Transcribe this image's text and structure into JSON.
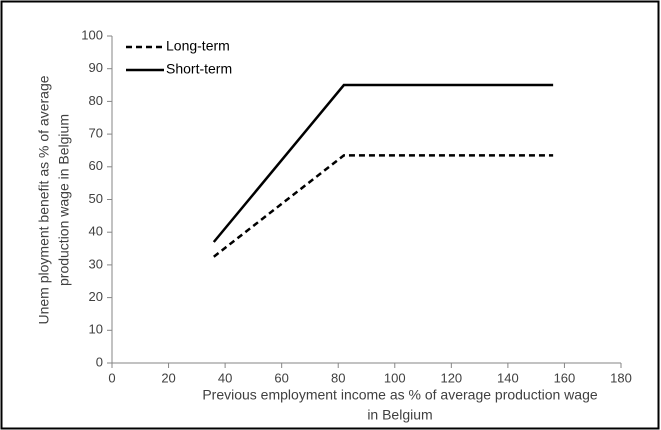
{
  "chart_data": {
    "type": "line",
    "xlabel": [
      "Previous employment income as % of average production wage",
      "in Belgium"
    ],
    "ylabel": [
      "Unem ployment benefit  as % of average",
      "production wage in Belgium"
    ],
    "series": [
      {
        "name": "Long-term",
        "color": "#000000",
        "line_style": "dashed",
        "x": [
          36,
          82,
          156
        ],
        "values": [
          32.5,
          63.5,
          63.5
        ]
      },
      {
        "name": "Short-term",
        "color": "#000000",
        "line_style": "solid",
        "x": [
          36,
          82,
          156
        ],
        "values": [
          37,
          85,
          85
        ]
      }
    ],
    "xlim": [
      0,
      180
    ],
    "xticks": [
      0,
      20,
      40,
      60,
      80,
      100,
      120,
      140,
      160,
      180
    ],
    "ylim": [
      0,
      100
    ],
    "yticks": [
      0,
      10,
      20,
      30,
      40,
      50,
      60,
      70,
      80,
      90,
      100
    ],
    "grid": false,
    "legend": "top-left"
  }
}
